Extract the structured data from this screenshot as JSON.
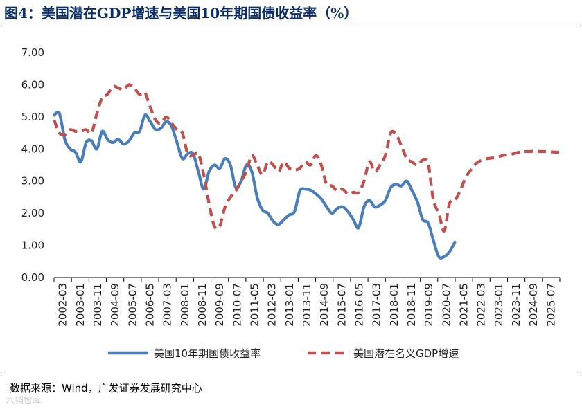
{
  "header": {
    "title": "图4：美国潜在GDP增速与美国10年期国债收益率（%）"
  },
  "footer": {
    "source": "数据来源：Wind，广发证券发展研究中心"
  },
  "watermark": {
    "text": "六韬智库"
  },
  "colors": {
    "treasury": "#4a7ebb",
    "gdp": "#c0504d",
    "axis": "#000000",
    "text": "#222222"
  },
  "chart_data": {
    "type": "line",
    "title": "美国潜在GDP增速与美国10年期国债收益率（%）",
    "xlabel": "",
    "ylabel": "%",
    "ylim": [
      0,
      7
    ],
    "yticks": [
      0,
      1,
      2,
      3,
      4,
      5,
      6,
      7
    ],
    "ytick_labels": [
      "0.00",
      "1.00",
      "2.00",
      "3.00",
      "4.00",
      "5.00",
      "6.00",
      "7.00"
    ],
    "xlim": [
      2002.167,
      2025.833
    ],
    "xtick_labels": [
      "2002-03",
      "2003-01",
      "2003-11",
      "2004-09",
      "2005-07",
      "2006-05",
      "2007-03",
      "2008-01",
      "2008-11",
      "2009-09",
      "2010-07",
      "2011-05",
      "2012-03",
      "2013-01",
      "2013-11",
      "2014-09",
      "2015-07",
      "2016-05",
      "2017-03",
      "2018-01",
      "2018-11",
      "2019-09",
      "2020-07",
      "2021-05",
      "2022-03",
      "2023-01",
      "2023-11",
      "2024-09",
      "2025-07"
    ],
    "grid": false,
    "legend_position": "bottom",
    "series": [
      {
        "name": "美国10年期国债收益率",
        "style": "solid",
        "x": [
          2002.17,
          2002.42,
          2002.67,
          2002.92,
          2003.17,
          2003.42,
          2003.67,
          2003.92,
          2004.17,
          2004.42,
          2004.67,
          2004.92,
          2005.17,
          2005.42,
          2005.67,
          2005.92,
          2006.17,
          2006.42,
          2006.67,
          2006.92,
          2007.17,
          2007.42,
          2007.67,
          2007.92,
          2008.17,
          2008.42,
          2008.67,
          2008.92,
          2009.17,
          2009.42,
          2009.67,
          2009.92,
          2010.17,
          2010.42,
          2010.67,
          2010.92,
          2011.17,
          2011.42,
          2011.67,
          2011.92,
          2012.17,
          2012.42,
          2012.67,
          2012.92,
          2013.17,
          2013.42,
          2013.67,
          2013.92,
          2014.17,
          2014.42,
          2014.67,
          2014.92,
          2015.17,
          2015.42,
          2015.67,
          2015.92,
          2016.17,
          2016.42,
          2016.67,
          2016.92,
          2017.17,
          2017.42,
          2017.67,
          2017.92,
          2018.17,
          2018.42,
          2018.67,
          2018.92,
          2019.17,
          2019.42,
          2019.67,
          2019.92,
          2020.17,
          2020.42,
          2020.67,
          2020.92,
          2021.17,
          2021.42
        ],
        "values": [
          5.05,
          5.1,
          4.3,
          4.0,
          3.9,
          3.6,
          4.2,
          4.25,
          4.0,
          4.55,
          4.3,
          4.2,
          4.3,
          4.15,
          4.25,
          4.5,
          4.55,
          5.05,
          4.85,
          4.6,
          4.65,
          4.85,
          4.7,
          4.2,
          3.7,
          3.85,
          3.85,
          3.3,
          2.75,
          3.3,
          3.5,
          3.4,
          3.7,
          3.5,
          2.8,
          3.0,
          3.5,
          3.3,
          2.5,
          2.1,
          2.0,
          1.75,
          1.65,
          1.8,
          1.95,
          2.05,
          2.7,
          2.75,
          2.72,
          2.6,
          2.45,
          2.2,
          2.0,
          2.15,
          2.2,
          2.05,
          1.8,
          1.55,
          2.2,
          2.4,
          2.2,
          2.25,
          2.4,
          2.8,
          2.9,
          2.85,
          3.0,
          2.7,
          2.35,
          1.8,
          1.7,
          1.15,
          0.65,
          0.65,
          0.8,
          1.1,
          null,
          null
        ]
      },
      {
        "name": "美国潜在名义GDP增速",
        "style": "dashed",
        "x": [
          2002.17,
          2002.42,
          2002.67,
          2002.92,
          2003.17,
          2003.42,
          2003.67,
          2003.92,
          2004.17,
          2004.42,
          2004.67,
          2004.92,
          2005.17,
          2005.42,
          2005.67,
          2005.92,
          2006.17,
          2006.42,
          2006.67,
          2006.92,
          2007.17,
          2007.42,
          2007.67,
          2007.92,
          2008.17,
          2008.42,
          2008.67,
          2008.92,
          2009.17,
          2009.42,
          2009.67,
          2009.92,
          2010.17,
          2010.42,
          2010.67,
          2010.92,
          2011.17,
          2011.42,
          2011.67,
          2011.92,
          2012.17,
          2012.42,
          2012.67,
          2012.92,
          2013.17,
          2013.42,
          2013.67,
          2013.92,
          2014.17,
          2014.42,
          2014.67,
          2014.92,
          2015.17,
          2015.42,
          2015.67,
          2015.92,
          2016.17,
          2016.42,
          2016.67,
          2016.92,
          2017.17,
          2017.42,
          2017.67,
          2017.92,
          2018.17,
          2018.42,
          2018.67,
          2018.92,
          2019.17,
          2019.42,
          2019.67,
          2019.92,
          2020.17,
          2020.42,
          2020.67,
          2020.92,
          2021.17,
          2021.42,
          2021.67,
          2021.92,
          2022.17,
          2022.42,
          2022.67,
          2022.92,
          2023.17,
          2023.42,
          2023.67,
          2023.92,
          2024.17,
          2024.42,
          2024.67,
          2024.92,
          2025.17,
          2025.42,
          2025.67,
          2025.83
        ],
        "values": [
          4.9,
          4.5,
          4.45,
          4.6,
          4.55,
          4.55,
          4.6,
          4.5,
          5.1,
          5.6,
          5.7,
          5.95,
          5.9,
          5.85,
          6.0,
          5.9,
          5.7,
          5.75,
          5.3,
          4.9,
          4.8,
          5.0,
          4.8,
          4.6,
          4.5,
          3.85,
          3.8,
          3.85,
          3.2,
          2.3,
          1.6,
          1.6,
          2.2,
          2.5,
          2.7,
          3.0,
          3.3,
          3.8,
          3.5,
          3.2,
          3.6,
          3.5,
          3.3,
          3.6,
          3.4,
          3.35,
          3.4,
          3.6,
          3.5,
          3.8,
          3.5,
          2.9,
          2.85,
          2.7,
          2.75,
          2.6,
          2.65,
          2.65,
          3.0,
          3.6,
          3.3,
          3.5,
          3.8,
          4.5,
          4.45,
          4.1,
          3.7,
          3.6,
          3.5,
          3.65,
          3.55,
          2.4,
          2.0,
          1.45,
          2.3,
          2.4,
          2.7,
          3.1,
          3.35,
          3.55,
          3.65,
          3.7,
          3.72,
          3.75,
          3.8,
          3.82,
          3.85,
          3.9,
          3.92,
          3.92,
          3.93,
          3.92,
          3.92,
          3.91,
          3.9,
          3.9
        ]
      }
    ]
  }
}
